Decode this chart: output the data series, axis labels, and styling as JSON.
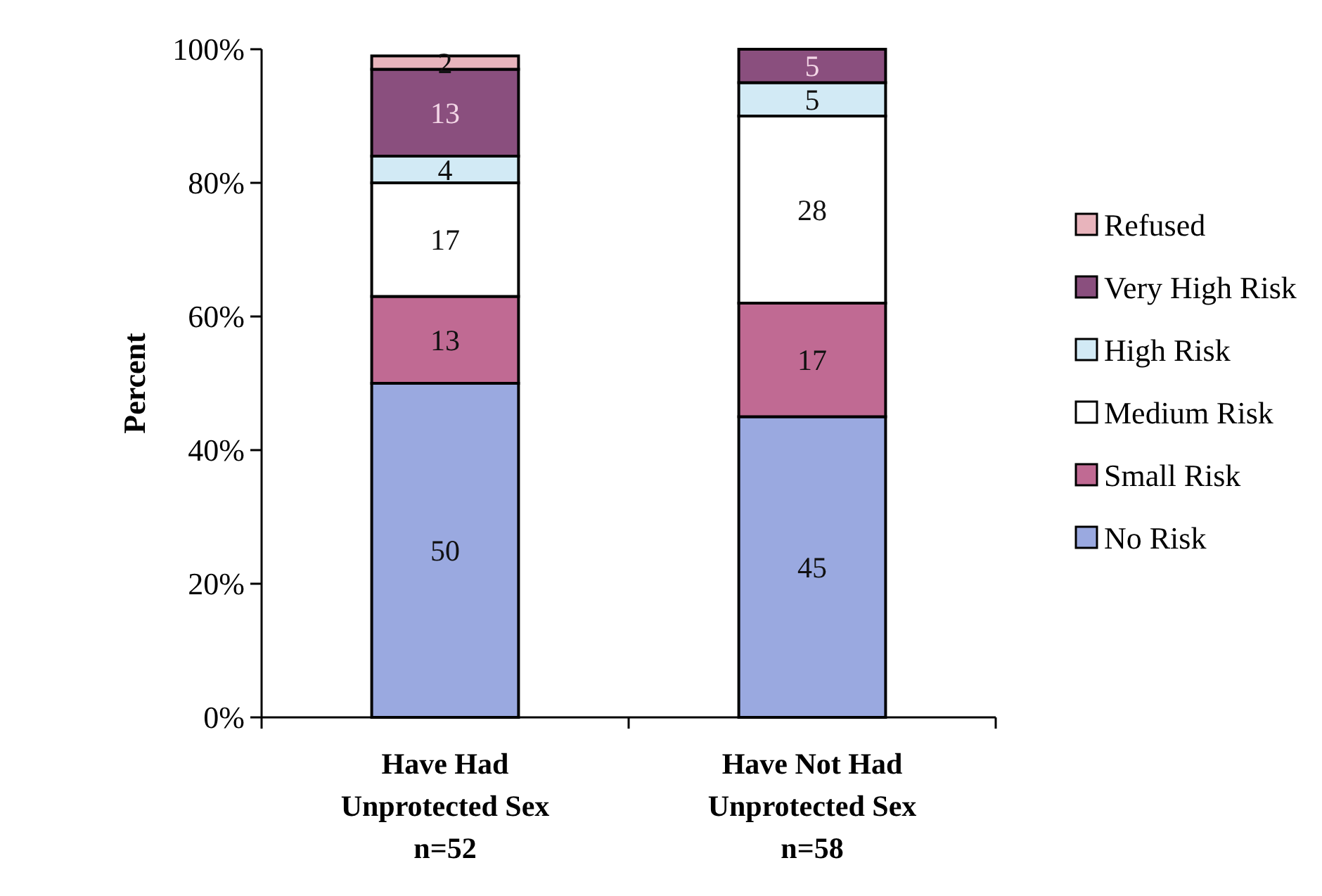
{
  "chart_data": {
    "type": "bar",
    "stacked": true,
    "ylabel": "Percent",
    "categories": [
      "Have Had\nUnprotected Sex\nn=52",
      "Have Not Had\nUnprotected Sex\nn=58"
    ],
    "series": [
      {
        "name": "No Risk",
        "color": "#9aa9e0",
        "values": [
          50,
          45
        ]
      },
      {
        "name": "Small Risk",
        "color": "#c06a93",
        "values": [
          13,
          17
        ]
      },
      {
        "name": "Medium Risk",
        "color": "#ffffff",
        "values": [
          17,
          28
        ]
      },
      {
        "name": "High Risk",
        "color": "#d2eaf5",
        "values": [
          4,
          5
        ]
      },
      {
        "name": "Very High Risk",
        "color": "#8a4f7e",
        "values": [
          13,
          5
        ]
      },
      {
        "name": "Refused",
        "color": "#e8b4bc",
        "values": [
          2,
          null
        ]
      }
    ],
    "ylim": [
      0,
      100
    ],
    "yticks": [
      {
        "value": 0,
        "label": "0%"
      },
      {
        "value": 20,
        "label": "20%"
      },
      {
        "value": 40,
        "label": "40%"
      },
      {
        "value": 60,
        "label": "60%"
      },
      {
        "value": 80,
        "label": "80%"
      },
      {
        "value": 100,
        "label": "100%"
      }
    ],
    "data_labels": true,
    "legend": "right",
    "grid": false
  }
}
